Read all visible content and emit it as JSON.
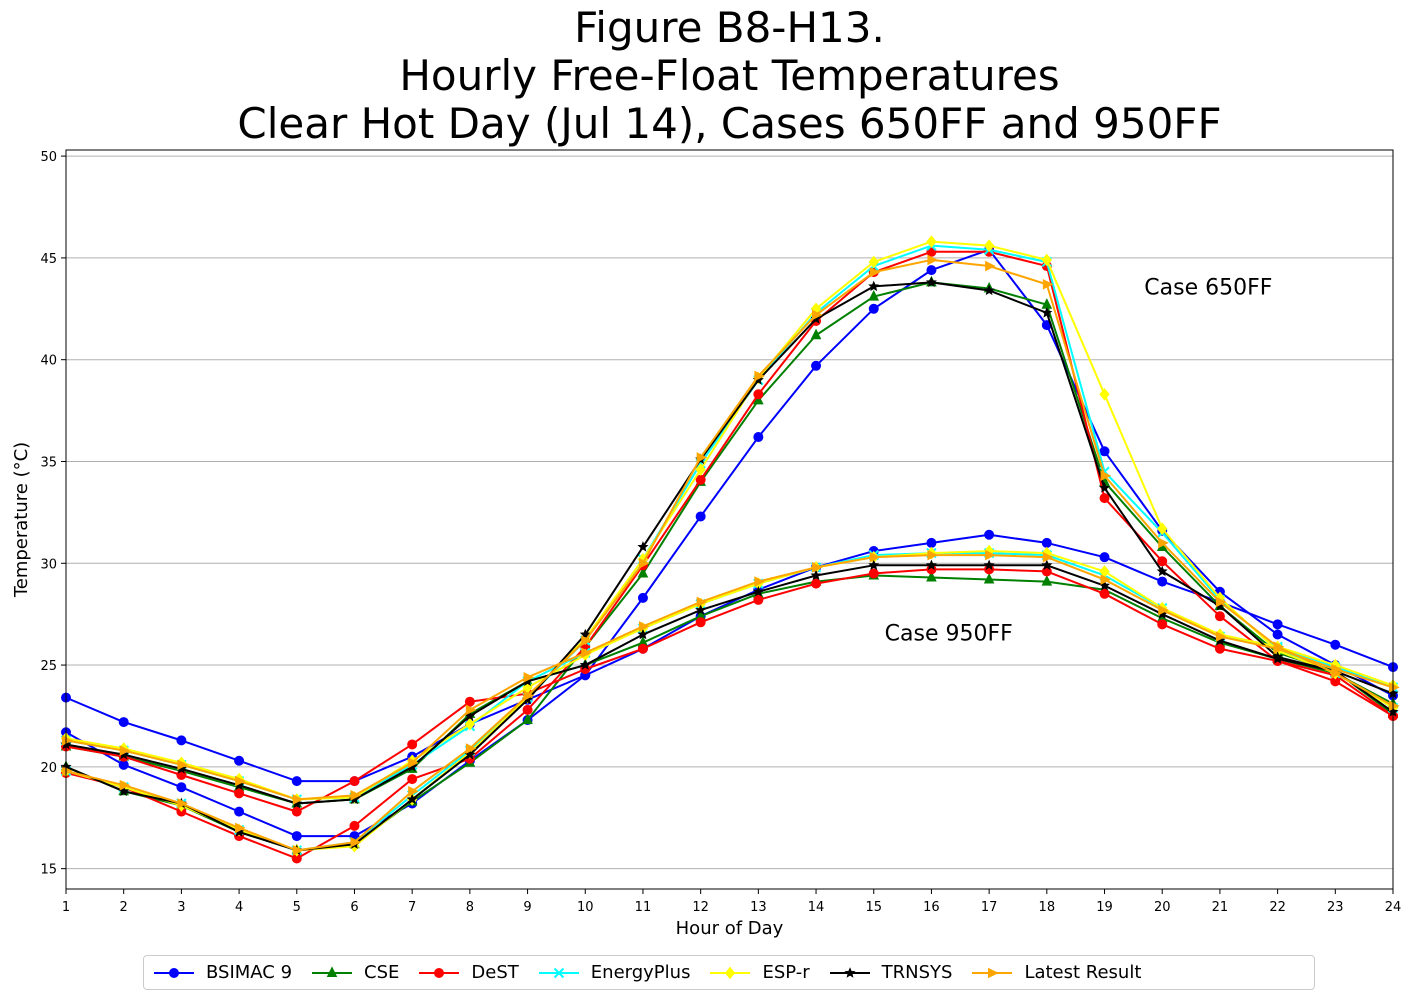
{
  "title_lines": [
    "Figure B8-H13.",
    "Hourly Free-Float Temperatures",
    "Clear Hot Day (Jul 14), Cases 650FF and 950FF"
  ],
  "chart_data": {
    "type": "line",
    "title": "Figure B8-H13. Hourly Free-Float Temperatures Clear Hot Day (Jul 14), Cases 650FF and 950FF",
    "xlabel": "Hour of Day",
    "ylabel": "Temperature (°C)",
    "xlim": [
      1,
      24
    ],
    "ylim": [
      14,
      50.3
    ],
    "x": [
      1,
      2,
      3,
      4,
      5,
      6,
      7,
      8,
      9,
      10,
      11,
      12,
      13,
      14,
      15,
      16,
      17,
      18,
      19,
      20,
      21,
      22,
      23,
      24
    ],
    "x_ticks": [
      "1",
      "2",
      "3",
      "4",
      "5",
      "6",
      "7",
      "8",
      "9",
      "10",
      "11",
      "12",
      "13",
      "14",
      "15",
      "16",
      "17",
      "18",
      "19",
      "20",
      "21",
      "22",
      "23",
      "24"
    ],
    "y_ticks": [
      "15",
      "20",
      "25",
      "30",
      "35",
      "40",
      "45",
      "50"
    ],
    "grid": "horizontal",
    "legend_position": "bottom-center",
    "annotations": [
      {
        "text": "Case 650FF",
        "x": 20.8,
        "y": 43.2
      },
      {
        "text": "Case 950FF",
        "x": 16.3,
        "y": 26.2
      }
    ],
    "series": [
      {
        "name": "BSIMAC 9",
        "case": "650FF",
        "color": "#0000ff",
        "marker": "circle",
        "values": [
          21.7,
          20.1,
          19.0,
          17.8,
          16.6,
          16.6,
          18.2,
          20.3,
          22.3,
          24.5,
          28.3,
          32.3,
          36.2,
          39.7,
          42.5,
          44.4,
          45.4,
          41.7,
          35.5,
          31.6,
          28.6,
          26.5,
          25.0,
          23.5
        ]
      },
      {
        "name": "BSIMAC 9",
        "case": "950FF",
        "color": "#0000ff",
        "marker": "circle",
        "values": [
          23.4,
          22.2,
          21.3,
          20.3,
          19.3,
          19.3,
          20.5,
          22.1,
          23.3,
          24.5,
          25.8,
          27.4,
          28.7,
          29.8,
          30.6,
          31.0,
          31.4,
          31.0,
          30.3,
          29.1,
          28.1,
          27.0,
          26.0,
          24.9
        ]
      },
      {
        "name": "CSE",
        "case": "650FF",
        "color": "#008000",
        "marker": "triangle",
        "values": [
          20.0,
          18.8,
          18.1,
          16.8,
          15.9,
          16.2,
          18.3,
          20.2,
          22.3,
          25.9,
          29.5,
          34.0,
          38.0,
          41.2,
          43.1,
          43.8,
          43.5,
          42.7,
          34.0,
          30.8,
          27.9,
          25.6,
          24.7,
          22.6
        ]
      },
      {
        "name": "CSE",
        "case": "950FF",
        "color": "#008000",
        "marker": "triangle",
        "values": [
          21.0,
          20.5,
          19.8,
          19.0,
          18.2,
          18.4,
          19.9,
          22.6,
          24.2,
          25.0,
          26.1,
          27.4,
          28.5,
          29.1,
          29.4,
          29.3,
          29.2,
          29.1,
          28.7,
          27.3,
          26.1,
          25.3,
          24.6,
          23.1
        ]
      },
      {
        "name": "DeST",
        "case": "650FF",
        "color": "#ff0000",
        "marker": "circle",
        "values": [
          19.7,
          19.0,
          17.8,
          16.6,
          15.5,
          17.1,
          19.4,
          20.4,
          22.8,
          25.9,
          29.9,
          34.1,
          38.3,
          41.9,
          44.3,
          45.3,
          45.3,
          44.6,
          33.2,
          30.1,
          27.4,
          25.2,
          24.2,
          22.5
        ]
      },
      {
        "name": "DeST",
        "case": "950FF",
        "color": "#ff0000",
        "marker": "circle",
        "values": [
          21.0,
          20.5,
          19.6,
          18.7,
          17.8,
          19.3,
          21.1,
          23.2,
          23.6,
          24.8,
          25.8,
          27.1,
          28.2,
          29.0,
          29.5,
          29.7,
          29.7,
          29.6,
          28.5,
          27.0,
          25.8,
          25.2,
          24.5,
          22.5
        ]
      },
      {
        "name": "EnergyPlus",
        "case": "650FF",
        "color": "#00ffff",
        "marker": "x",
        "values": [
          19.8,
          19.0,
          18.2,
          16.9,
          15.9,
          16.3,
          18.6,
          20.8,
          23.4,
          26.2,
          30.2,
          34.9,
          39.0,
          42.3,
          44.6,
          45.6,
          45.4,
          44.8,
          34.5,
          31.5,
          28.2,
          25.8,
          24.6,
          22.9
        ]
      },
      {
        "name": "EnergyPlus",
        "case": "950FF",
        "color": "#00ffff",
        "marker": "x",
        "values": [
          21.3,
          20.8,
          20.1,
          19.3,
          18.4,
          18.5,
          20.1,
          22.0,
          24.2,
          25.6,
          26.8,
          28.0,
          29.0,
          29.8,
          30.4,
          30.5,
          30.5,
          30.4,
          29.4,
          27.8,
          26.4,
          25.9,
          24.9,
          23.9
        ]
      },
      {
        "name": "ESP-r",
        "case": "650FF",
        "color": "#ffff00",
        "marker": "diamond",
        "values": [
          19.8,
          19.0,
          18.1,
          16.9,
          15.9,
          16.1,
          18.4,
          20.7,
          23.4,
          26.3,
          30.2,
          34.6,
          39.1,
          42.5,
          44.8,
          45.8,
          45.6,
          44.9,
          38.3,
          31.7,
          28.3,
          25.7,
          24.6,
          22.9
        ]
      },
      {
        "name": "ESP-r",
        "case": "950FF",
        "color": "#ffff00",
        "marker": "diamond",
        "values": [
          21.4,
          20.9,
          20.2,
          19.4,
          18.4,
          18.5,
          20.3,
          22.1,
          23.9,
          25.5,
          26.8,
          28.0,
          29.0,
          29.8,
          30.3,
          30.5,
          30.6,
          30.5,
          29.6,
          27.8,
          26.5,
          25.9,
          25.0,
          24.0
        ]
      },
      {
        "name": "TRNSYS",
        "case": "650FF",
        "color": "#000000",
        "marker": "star",
        "values": [
          20.0,
          18.8,
          18.2,
          16.8,
          15.9,
          16.2,
          18.4,
          20.6,
          23.3,
          26.5,
          30.8,
          35.1,
          39.0,
          42.0,
          43.6,
          43.8,
          43.4,
          42.3,
          33.7,
          29.6,
          27.9,
          25.4,
          24.7,
          22.7
        ]
      },
      {
        "name": "TRNSYS",
        "case": "950FF",
        "color": "#000000",
        "marker": "star",
        "values": [
          21.1,
          20.6,
          19.9,
          19.1,
          18.2,
          18.4,
          20.0,
          22.5,
          24.2,
          25.0,
          26.5,
          27.7,
          28.6,
          29.4,
          29.9,
          29.9,
          29.9,
          29.9,
          28.9,
          27.5,
          26.2,
          25.3,
          24.7,
          23.6
        ]
      },
      {
        "name": "Latest Result",
        "case": "650FF",
        "color": "#ffa500",
        "marker": "triangle-right",
        "values": [
          19.8,
          19.1,
          18.2,
          17.0,
          15.9,
          16.3,
          18.8,
          20.9,
          23.5,
          26.2,
          30.0,
          35.2,
          39.2,
          42.2,
          44.3,
          44.9,
          44.6,
          43.7,
          34.3,
          31.0,
          28.1,
          25.9,
          24.6,
          23.0
        ]
      },
      {
        "name": "Latest Result",
        "case": "950FF",
        "color": "#ffa500",
        "marker": "triangle-right",
        "values": [
          21.3,
          20.8,
          20.1,
          19.3,
          18.4,
          18.6,
          20.2,
          22.8,
          24.4,
          25.6,
          26.9,
          28.1,
          29.1,
          29.8,
          30.3,
          30.4,
          30.4,
          30.3,
          29.2,
          27.7,
          26.4,
          25.8,
          24.8,
          23.9
        ]
      }
    ]
  },
  "legend": [
    {
      "label": "BSIMAC 9",
      "color": "#0000ff",
      "marker": "circle"
    },
    {
      "label": "CSE",
      "color": "#008000",
      "marker": "triangle"
    },
    {
      "label": "DeST",
      "color": "#ff0000",
      "marker": "circle"
    },
    {
      "label": "EnergyPlus",
      "color": "#00ffff",
      "marker": "x"
    },
    {
      "label": "ESP-r",
      "color": "#ffff00",
      "marker": "diamond"
    },
    {
      "label": "TRNSYS",
      "color": "#000000",
      "marker": "star"
    },
    {
      "label": "Latest Result",
      "color": "#ffa500",
      "marker": "triangle-right"
    }
  ]
}
